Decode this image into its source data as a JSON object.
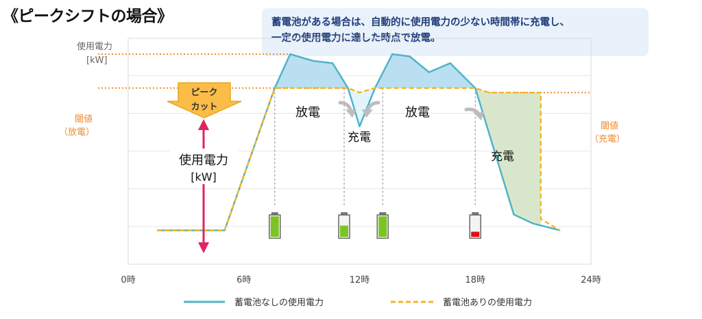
{
  "title": "《ピークシフトの場合》",
  "note": {
    "line1": "蓄電池がある場合は、自動的に使用電力の少ない時間帯に充電し、",
    "line2": "一定の使用電力に達した時点で放電。"
  },
  "chart_data": {
    "type": "line",
    "ylabel_line1": "使用電力",
    "ylabel_line2": "[kW]",
    "xlabel": "",
    "xlim": [
      0,
      24
    ],
    "ylim": [
      0,
      100
    ],
    "x_ticks": [
      0,
      6,
      12,
      18,
      24
    ],
    "x_tick_labels": [
      "0時",
      "6時",
      "12時",
      "18時",
      "24時"
    ],
    "grid": true,
    "threshold_value": 78,
    "peak_value": 93,
    "threshold_left_line1": "閾値",
    "threshold_left_line2": "（放電）",
    "threshold_right_line1": "閾値",
    "threshold_right_line2": "（充電）",
    "legend_position": "bottom",
    "series": [
      {
        "name": "蓄電池なしの使用電力",
        "color": "#4fb3c8",
        "style": "solid",
        "points": [
          [
            1.5,
            15
          ],
          [
            5,
            15
          ],
          [
            7.6,
            78
          ],
          [
            8.4,
            93
          ],
          [
            9.6,
            90
          ],
          [
            10.6,
            89
          ],
          [
            11.4,
            78
          ],
          [
            12.0,
            61
          ],
          [
            12.8,
            78
          ],
          [
            13.7,
            93
          ],
          [
            14.6,
            92
          ],
          [
            15.6,
            85
          ],
          [
            16.7,
            89
          ],
          [
            18.0,
            78
          ],
          [
            20.0,
            22
          ],
          [
            21.0,
            18
          ],
          [
            22.4,
            15
          ]
        ]
      },
      {
        "name": "蓄電池ありの使用電力",
        "color": "#f5b626",
        "style": "dashed",
        "points": [
          [
            1.5,
            15
          ],
          [
            5,
            15
          ],
          [
            7.6,
            78
          ],
          [
            11.4,
            78
          ],
          [
            12.0,
            76
          ],
          [
            12.8,
            78
          ],
          [
            18.0,
            78
          ],
          [
            18.7,
            76
          ],
          [
            21.4,
            76
          ],
          [
            21.4,
            20
          ],
          [
            22.4,
            15
          ]
        ]
      }
    ],
    "areas": [
      {
        "label": "放電",
        "color": "#b9dff0"
      },
      {
        "label": "充電",
        "color": "#e3f4fb"
      },
      {
        "label": "放電",
        "color": "#b9dff0"
      },
      {
        "label": "充電",
        "color": "#d8e7cc"
      }
    ],
    "peak_cut_line1": "ピーク",
    "peak_cut_line2": "カット",
    "usage_label_line1": "使用電力",
    "usage_label_line2": "[kW]",
    "batteries": [
      {
        "time": 7.6,
        "level": 1.0,
        "color": "#7cc423"
      },
      {
        "time": 11.2,
        "level": 0.55,
        "color": "#7cc423"
      },
      {
        "time": 13.2,
        "level": 1.0,
        "color": "#7cc423"
      },
      {
        "time": 18.0,
        "level": 0.25,
        "color": "#e01010"
      }
    ]
  }
}
